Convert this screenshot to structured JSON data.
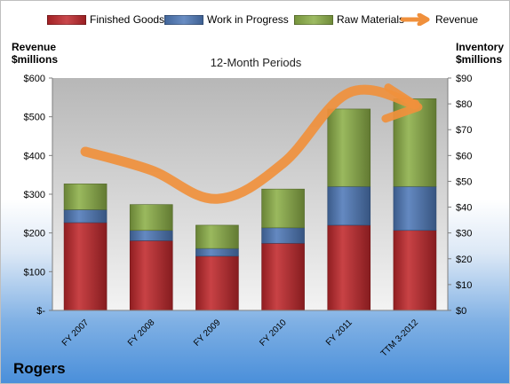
{
  "company": "Rogers",
  "chart_data": {
    "type": "bar",
    "subtitle": "12-Month Periods",
    "categories": [
      "FY 2007",
      "FY 2008",
      "FY 2009",
      "FY 2010",
      "FY 2011",
      "TTM 3-2012"
    ],
    "stacked": true,
    "series": [
      {
        "name": "Finished Goods",
        "axis": "right",
        "color": "#c0282c",
        "values": [
          34,
          27,
          21,
          26,
          33,
          31
        ]
      },
      {
        "name": "Work in Progress",
        "axis": "right",
        "color": "#4f79b8",
        "values": [
          5,
          4,
          3,
          6,
          15,
          17
        ]
      },
      {
        "name": "Raw Materials",
        "axis": "right",
        "color": "#8caf48",
        "values": [
          10,
          10,
          9,
          15,
          30,
          34
        ]
      }
    ],
    "line_series": {
      "name": "Revenue",
      "axis": "left",
      "color": "#f0903c",
      "values": [
        410,
        362,
        288,
        380,
        562,
        532
      ]
    },
    "left_axis": {
      "label": "Revenue $millions",
      "min": 0,
      "max": 600,
      "step": 100,
      "tick_labels": [
        "$-",
        "$100",
        "$200",
        "$300",
        "$400",
        "$500",
        "$600"
      ]
    },
    "right_axis": {
      "label": "Inventory $millions",
      "min": 0,
      "max": 90,
      "step": 10,
      "tick_labels": [
        "$0",
        "$10",
        "$20",
        "$30",
        "$40",
        "$50",
        "$60",
        "$70",
        "$80",
        "$90"
      ]
    },
    "legend": {
      "position": "top",
      "items": [
        {
          "label": "Finished Goods",
          "color": "#c0282c",
          "kind": "box"
        },
        {
          "label": "Work in Progress",
          "color": "#4f79b8",
          "kind": "box"
        },
        {
          "label": "Raw Materials",
          "color": "#8caf48",
          "kind": "box"
        },
        {
          "label": "Revenue",
          "color": "#f0903c",
          "kind": "arrow"
        }
      ]
    },
    "grid": false
  }
}
